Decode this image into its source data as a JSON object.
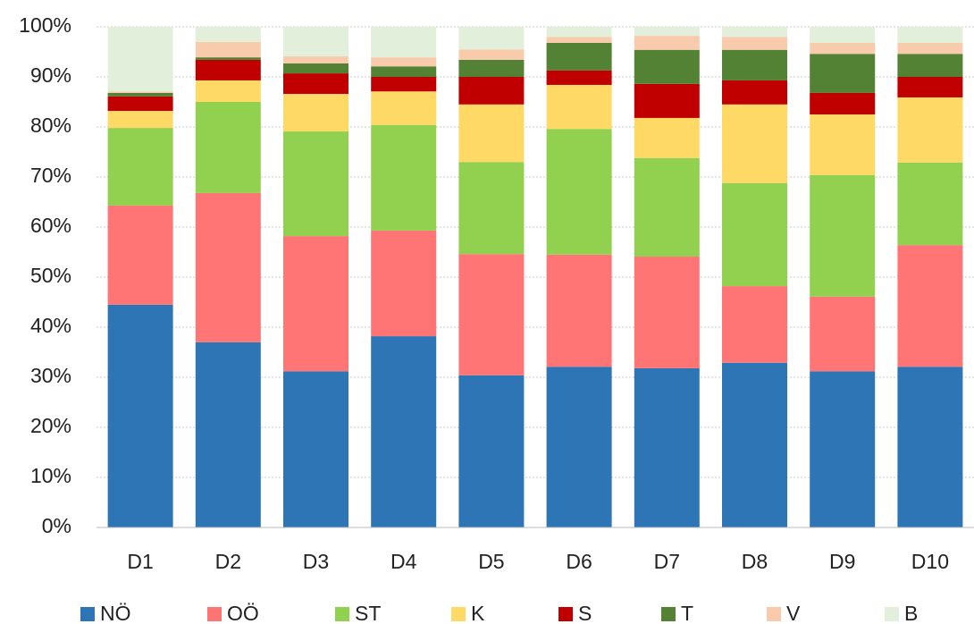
{
  "chart_data": {
    "type": "stacked_bar",
    "categories": [
      "D1",
      "D2",
      "D3",
      "D4",
      "D5",
      "D6",
      "D7",
      "D8",
      "D9",
      "D10"
    ],
    "series": [
      {
        "name": "NÖ",
        "color": "#2e75b6",
        "values": [
          44.5,
          37.0,
          31.2,
          38.2,
          30.4,
          32.1,
          31.8,
          32.9,
          31.2,
          32.1
        ]
      },
      {
        "name": "OÖ",
        "color": "#ff7575",
        "values": [
          19.8,
          29.8,
          27.0,
          21.1,
          24.2,
          22.4,
          22.3,
          15.3,
          14.9,
          24.3
        ]
      },
      {
        "name": "ST",
        "color": "#92d050",
        "values": [
          15.5,
          18.2,
          20.9,
          21.1,
          18.4,
          25.1,
          19.7,
          20.6,
          24.3,
          16.5
        ]
      },
      {
        "name": "K",
        "color": "#ffd966",
        "values": [
          3.4,
          4.3,
          7.5,
          6.7,
          11.5,
          8.8,
          8.0,
          15.7,
          12.1,
          13.0
        ]
      },
      {
        "name": "S",
        "color": "#c00000",
        "values": [
          2.9,
          4.1,
          4.1,
          2.9,
          5.5,
          2.9,
          6.8,
          4.8,
          4.3,
          4.1
        ]
      },
      {
        "name": "T",
        "color": "#548235",
        "values": [
          0.7,
          0.5,
          2.0,
          2.1,
          3.4,
          5.5,
          6.8,
          6.1,
          7.8,
          4.6
        ]
      },
      {
        "name": "V",
        "color": "#f8cbad",
        "values": [
          0.3,
          3.1,
          1.4,
          1.8,
          2.1,
          1.2,
          2.8,
          2.6,
          2.2,
          2.2
        ]
      },
      {
        "name": "B",
        "color": "#e2efda",
        "values": [
          12.9,
          3.0,
          5.9,
          6.1,
          4.5,
          2.0,
          1.8,
          2.0,
          3.2,
          3.2
        ]
      }
    ],
    "ylim": [
      0,
      100
    ],
    "yticks": [
      {
        "value": 0,
        "label": "0%"
      },
      {
        "value": 10,
        "label": "10%"
      },
      {
        "value": 20,
        "label": "20%"
      },
      {
        "value": 30,
        "label": "30%"
      },
      {
        "value": 40,
        "label": "40%"
      },
      {
        "value": 50,
        "label": "50%"
      },
      {
        "value": 60,
        "label": "60%"
      },
      {
        "value": 70,
        "label": "70%"
      },
      {
        "value": 80,
        "label": "80%"
      },
      {
        "value": 90,
        "label": "90%"
      },
      {
        "value": 100,
        "label": "100%"
      }
    ],
    "grid": true
  }
}
